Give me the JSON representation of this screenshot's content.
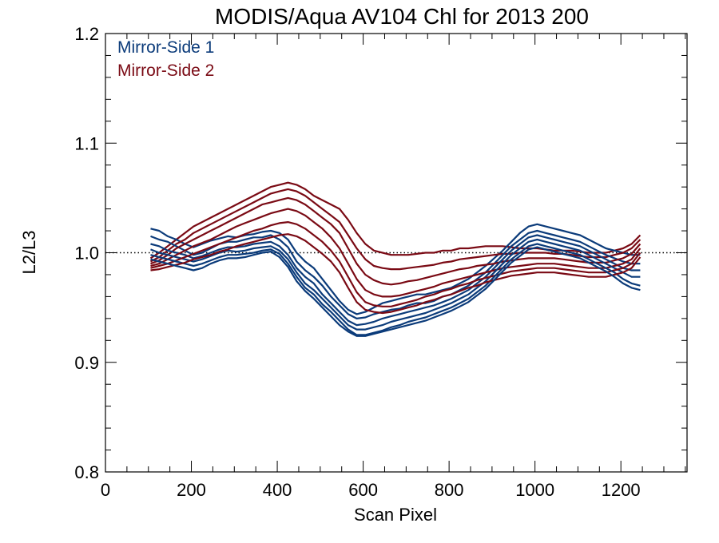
{
  "chart_data": {
    "type": "line",
    "title": "MODIS/Aqua AV104 Chl for 2013 200",
    "xlabel": "Scan Pixel",
    "ylabel": "L2/L3",
    "xlim": [
      0,
      1354
    ],
    "ylim": [
      0.8,
      1.2
    ],
    "xticks": [
      0,
      200,
      400,
      600,
      800,
      1000,
      1200
    ],
    "xtick_labels": [
      "0",
      "200",
      "400",
      "600",
      "800",
      "1000",
      "1200"
    ],
    "yticks": [
      0.8,
      0.9,
      1.0,
      1.1,
      1.2
    ],
    "ytick_labels": [
      "0.8",
      "0.9",
      "1.0",
      "1.1",
      "1.2"
    ],
    "reference_line": 1.0,
    "legend_placement": "top-left",
    "x": [
      105,
      125,
      145,
      165,
      185,
      205,
      225,
      245,
      265,
      285,
      305,
      325,
      345,
      365,
      385,
      405,
      425,
      445,
      465,
      485,
      505,
      525,
      545,
      565,
      585,
      605,
      625,
      645,
      665,
      685,
      705,
      725,
      745,
      765,
      785,
      805,
      825,
      845,
      865,
      885,
      905,
      925,
      945,
      965,
      985,
      1005,
      1025,
      1045,
      1065,
      1085,
      1105,
      1125,
      1145,
      1165,
      1185,
      1205,
      1225,
      1245
    ],
    "series": [
      {
        "name": "Mirror-Side 1",
        "color": "#0b3b7a",
        "lines": [
          [
            1.022,
            1.02,
            1.015,
            1.012,
            1.008,
            1.005,
            1.008,
            1.011,
            1.013,
            1.015,
            1.014,
            1.016,
            1.017,
            1.019,
            1.02,
            1.018,
            1.012,
            1.0,
            0.992,
            0.986,
            0.976,
            0.966,
            0.956,
            0.948,
            0.944,
            0.946,
            0.95,
            0.954,
            0.956,
            0.958,
            0.96,
            0.962,
            0.962,
            0.964,
            0.966,
            0.968,
            0.972,
            0.976,
            0.982,
            0.988,
            0.995,
            1.002,
            1.01,
            1.018,
            1.024,
            1.026,
            1.024,
            1.022,
            1.02,
            1.018,
            1.016,
            1.012,
            1.008,
            1.004,
            1.002,
            1.0,
            0.998,
            0.998
          ],
          [
            1.015,
            1.012,
            1.01,
            1.006,
            1.002,
            0.998,
            1.0,
            1.004,
            1.008,
            1.01,
            1.01,
            1.012,
            1.014,
            1.014,
            1.016,
            1.012,
            1.005,
            0.992,
            0.984,
            0.978,
            0.97,
            0.96,
            0.952,
            0.944,
            0.94,
            0.941,
            0.944,
            0.946,
            0.948,
            0.949,
            0.952,
            0.954,
            0.954,
            0.956,
            0.96,
            0.962,
            0.966,
            0.97,
            0.976,
            0.982,
            0.99,
            0.998,
            1.006,
            1.012,
            1.018,
            1.02,
            1.018,
            1.016,
            1.014,
            1.012,
            1.01,
            1.006,
            1.002,
            0.998,
            0.995,
            0.992,
            0.99,
            0.99
          ],
          [
            1.008,
            1.006,
            1.002,
            1.0,
            0.998,
            0.995,
            0.997,
            1.0,
            1.003,
            1.005,
            1.005,
            1.006,
            1.008,
            1.009,
            1.01,
            1.006,
            0.998,
            0.986,
            0.978,
            0.972,
            0.962,
            0.954,
            0.946,
            0.938,
            0.934,
            0.935,
            0.937,
            0.94,
            0.942,
            0.944,
            0.946,
            0.948,
            0.95,
            0.952,
            0.955,
            0.958,
            0.962,
            0.966,
            0.972,
            0.978,
            0.986,
            0.994,
            1.002,
            1.008,
            1.014,
            1.016,
            1.014,
            1.012,
            1.01,
            1.008,
            1.006,
            1.002,
            0.998,
            0.994,
            0.99,
            0.986,
            0.984,
            0.984
          ],
          [
            1.003,
            1.0,
            0.998,
            0.996,
            0.994,
            0.992,
            0.994,
            0.997,
            1.0,
            1.002,
            1.001,
            1.002,
            1.004,
            1.005,
            1.006,
            1.002,
            0.994,
            0.982,
            0.972,
            0.966,
            0.958,
            0.95,
            0.942,
            0.934,
            0.93,
            0.93,
            0.932,
            0.934,
            0.937,
            0.939,
            0.941,
            0.943,
            0.945,
            0.948,
            0.951,
            0.954,
            0.958,
            0.962,
            0.968,
            0.974,
            0.982,
            0.99,
            0.998,
            1.004,
            1.01,
            1.012,
            1.01,
            1.008,
            1.006,
            1.004,
            1.002,
            0.998,
            0.994,
            0.99,
            0.986,
            0.982,
            0.978,
            0.978
          ],
          [
            0.998,
            0.996,
            0.994,
            0.992,
            0.99,
            0.988,
            0.99,
            0.993,
            0.996,
            0.998,
            0.998,
            0.999,
            1.0,
            1.002,
            1.003,
            0.999,
            0.99,
            0.978,
            0.968,
            0.962,
            0.953,
            0.946,
            0.938,
            0.93,
            0.925,
            0.925,
            0.927,
            0.929,
            0.932,
            0.934,
            0.937,
            0.939,
            0.941,
            0.944,
            0.947,
            0.95,
            0.954,
            0.958,
            0.964,
            0.97,
            0.978,
            0.986,
            0.994,
            1.0,
            1.006,
            1.008,
            1.006,
            1.004,
            1.002,
            1.0,
            0.998,
            0.994,
            0.99,
            0.986,
            0.982,
            0.976,
            0.972,
            0.97
          ],
          [
            0.994,
            0.992,
            0.99,
            0.988,
            0.986,
            0.984,
            0.986,
            0.99,
            0.993,
            0.995,
            0.995,
            0.996,
            0.998,
            1.0,
            1.001,
            0.996,
            0.987,
            0.974,
            0.965,
            0.958,
            0.95,
            0.942,
            0.934,
            0.928,
            0.924,
            0.924,
            0.926,
            0.928,
            0.93,
            0.932,
            0.934,
            0.936,
            0.938,
            0.941,
            0.944,
            0.947,
            0.951,
            0.955,
            0.961,
            0.967,
            0.975,
            0.983,
            0.991,
            0.997,
            1.003,
            1.005,
            1.003,
            1.001,
            0.999,
            0.997,
            0.995,
            0.991,
            0.987,
            0.983,
            0.978,
            0.972,
            0.968,
            0.966
          ]
        ]
      },
      {
        "name": "Mirror-Side 2",
        "color": "#7a0a14",
        "lines": [
          [
            0.995,
            1.0,
            1.006,
            1.012,
            1.018,
            1.024,
            1.028,
            1.032,
            1.036,
            1.04,
            1.044,
            1.048,
            1.052,
            1.056,
            1.06,
            1.062,
            1.064,
            1.062,
            1.058,
            1.052,
            1.048,
            1.044,
            1.04,
            1.03,
            1.018,
            1.008,
            1.002,
            1.0,
            0.998,
            0.998,
            0.998,
            0.999,
            1.0,
            1.0,
            1.002,
            1.002,
            1.004,
            1.004,
            1.005,
            1.006,
            1.006,
            1.006,
            1.005,
            1.004,
            1.004,
            1.004,
            1.003,
            1.002,
            1.002,
            1.002,
            1.001,
            1.0,
            1.0,
            1.0,
            1.002,
            1.004,
            1.008,
            1.016
          ],
          [
            0.992,
            0.996,
            1.002,
            1.008,
            1.012,
            1.018,
            1.022,
            1.026,
            1.03,
            1.034,
            1.038,
            1.042,
            1.046,
            1.05,
            1.054,
            1.056,
            1.058,
            1.056,
            1.052,
            1.046,
            1.04,
            1.034,
            1.028,
            1.016,
            1.004,
            0.994,
            0.988,
            0.986,
            0.985,
            0.985,
            0.986,
            0.987,
            0.988,
            0.989,
            0.991,
            0.992,
            0.994,
            0.995,
            0.996,
            0.997,
            0.998,
            0.999,
            0.999,
            1.0,
            1.0,
            1.0,
            1.0,
            0.999,
            0.999,
            0.998,
            0.997,
            0.996,
            0.996,
            0.996,
            0.998,
            1.0,
            1.004,
            1.012
          ],
          [
            0.99,
            0.993,
            0.998,
            1.004,
            1.008,
            1.012,
            1.016,
            1.02,
            1.024,
            1.028,
            1.032,
            1.036,
            1.04,
            1.044,
            1.046,
            1.048,
            1.05,
            1.048,
            1.044,
            1.038,
            1.032,
            1.026,
            1.018,
            1.004,
            0.99,
            0.98,
            0.975,
            0.972,
            0.971,
            0.972,
            0.974,
            0.975,
            0.977,
            0.979,
            0.981,
            0.983,
            0.985,
            0.986,
            0.988,
            0.989,
            0.99,
            0.992,
            0.993,
            0.994,
            0.995,
            0.995,
            0.995,
            0.995,
            0.994,
            0.993,
            0.992,
            0.991,
            0.991,
            0.991,
            0.993,
            0.995,
            0.999,
            1.008
          ],
          [
            0.988,
            0.99,
            0.994,
            0.998,
            1.002,
            1.006,
            1.009,
            1.012,
            1.016,
            1.02,
            1.024,
            1.027,
            1.03,
            1.033,
            1.036,
            1.038,
            1.04,
            1.038,
            1.034,
            1.028,
            1.022,
            1.014,
            1.004,
            0.99,
            0.976,
            0.966,
            0.962,
            0.96,
            0.96,
            0.961,
            0.963,
            0.965,
            0.967,
            0.969,
            0.972,
            0.974,
            0.976,
            0.978,
            0.98,
            0.982,
            0.984,
            0.986,
            0.987,
            0.988,
            0.989,
            0.99,
            0.99,
            0.99,
            0.989,
            0.988,
            0.987,
            0.986,
            0.986,
            0.986,
            0.988,
            0.99,
            0.994,
            1.004
          ],
          [
            0.986,
            0.988,
            0.99,
            0.993,
            0.996,
            0.999,
            1.002,
            1.005,
            1.008,
            1.011,
            1.014,
            1.017,
            1.02,
            1.022,
            1.025,
            1.027,
            1.028,
            1.026,
            1.022,
            1.016,
            1.01,
            1.002,
            0.992,
            0.978,
            0.964,
            0.955,
            0.952,
            0.951,
            0.951,
            0.953,
            0.955,
            0.957,
            0.96,
            0.962,
            0.965,
            0.967,
            0.97,
            0.972,
            0.975,
            0.977,
            0.979,
            0.981,
            0.983,
            0.984,
            0.985,
            0.986,
            0.986,
            0.986,
            0.985,
            0.984,
            0.983,
            0.982,
            0.982,
            0.982,
            0.984,
            0.986,
            0.99,
            1.0
          ],
          [
            0.984,
            0.985,
            0.987,
            0.989,
            0.991,
            0.994,
            0.996,
            0.998,
            1.001,
            1.003,
            1.006,
            1.008,
            1.01,
            1.012,
            1.014,
            1.016,
            1.017,
            1.015,
            1.011,
            1.005,
            0.999,
            0.992,
            0.982,
            0.968,
            0.955,
            0.948,
            0.946,
            0.945,
            0.946,
            0.948,
            0.95,
            0.952,
            0.955,
            0.957,
            0.96,
            0.962,
            0.965,
            0.968,
            0.97,
            0.973,
            0.975,
            0.977,
            0.979,
            0.98,
            0.981,
            0.982,
            0.982,
            0.982,
            0.981,
            0.98,
            0.979,
            0.978,
            0.978,
            0.978,
            0.98,
            0.982,
            0.986,
            0.996
          ]
        ]
      }
    ]
  }
}
